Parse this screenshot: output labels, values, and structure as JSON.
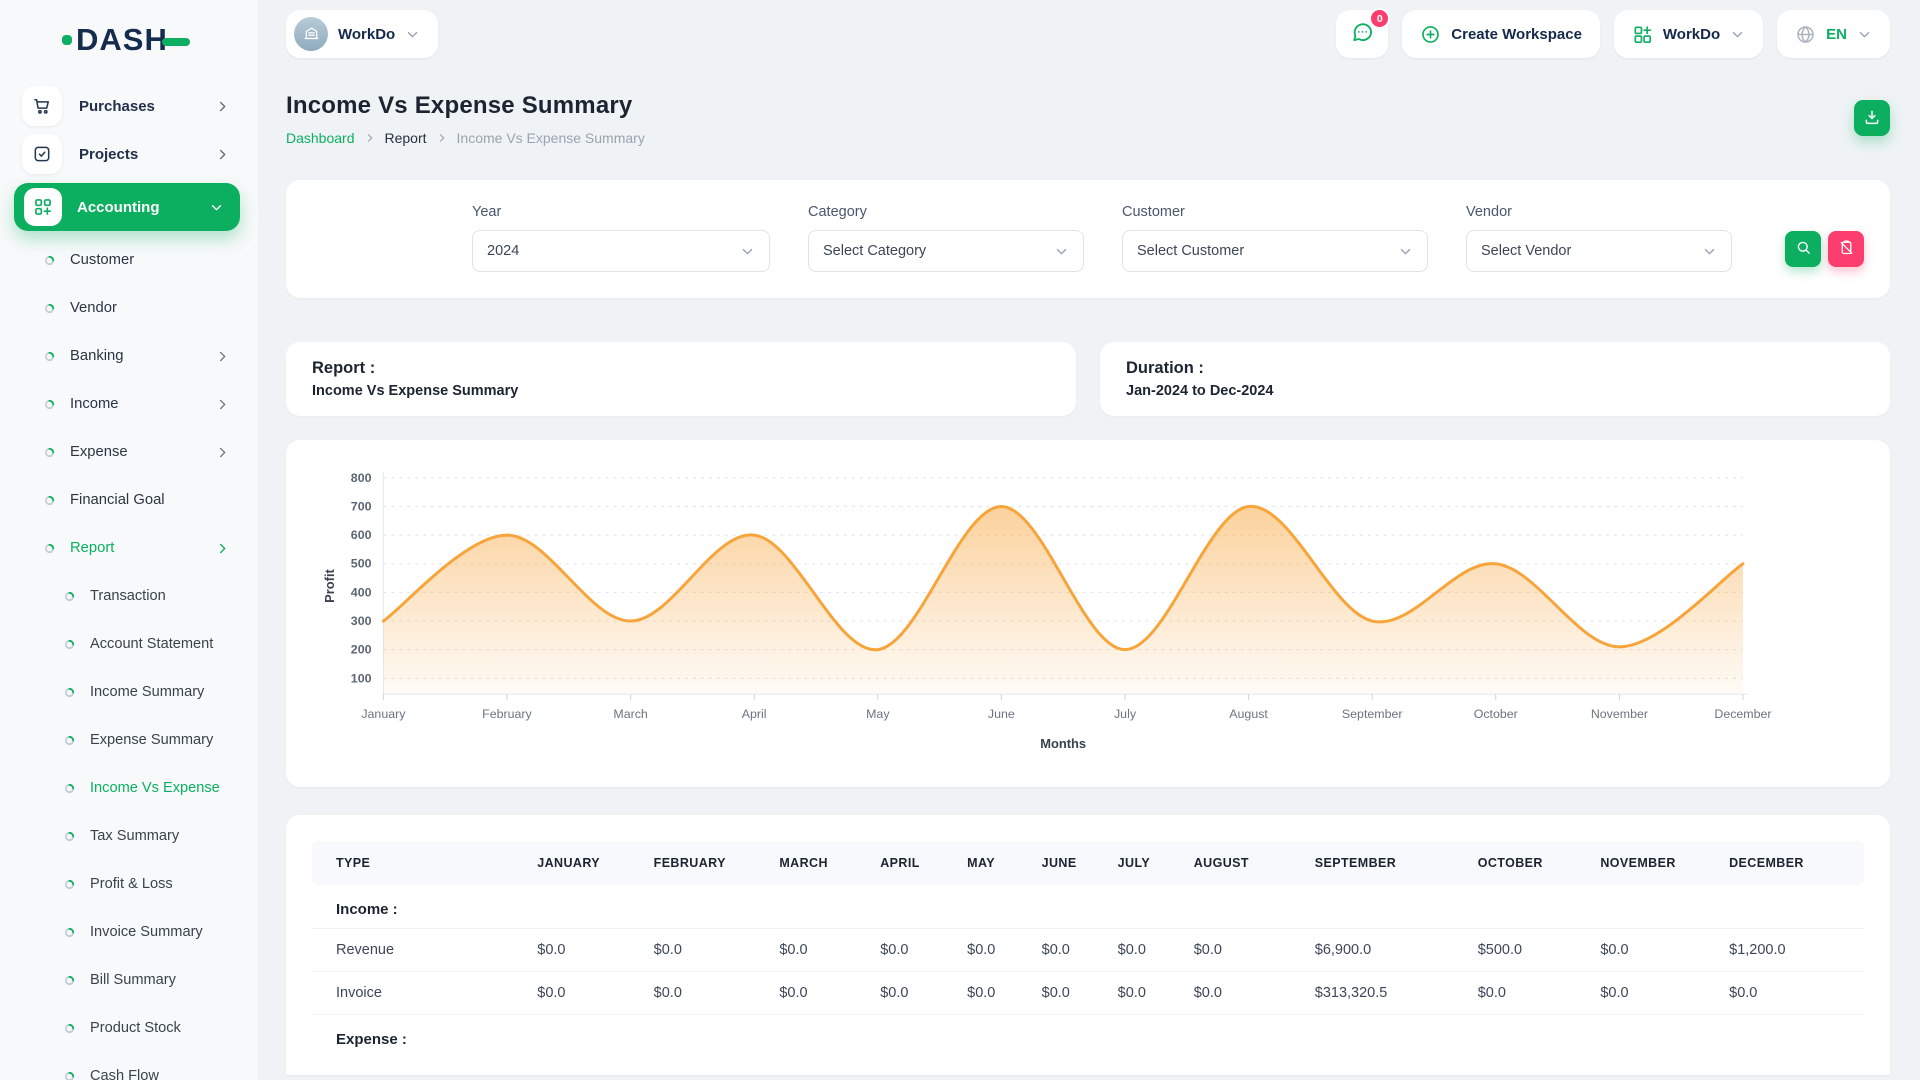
{
  "brand": {
    "name": "DASH"
  },
  "header": {
    "workspace_label": "WorkDo",
    "notification_count": "0",
    "create_workspace_label": "Create Workspace",
    "workdo_menu_label": "WorkDo",
    "language_label": "EN"
  },
  "page": {
    "title": "Income Vs Expense Summary",
    "breadcrumb": [
      "Dashboard",
      "Report",
      "Income Vs Expense Summary"
    ]
  },
  "sidebar": {
    "items": [
      {
        "label": "Purchases",
        "icon": "cart",
        "level": 0,
        "chevron": "right"
      },
      {
        "label": "Projects",
        "icon": "checkbox",
        "level": 0,
        "chevron": "right"
      },
      {
        "label": "Accounting",
        "icon": "accounting",
        "level": 0,
        "chevron": "down",
        "active": true
      },
      {
        "label": "Customer",
        "level": 1
      },
      {
        "label": "Vendor",
        "level": 1
      },
      {
        "label": "Banking",
        "level": 1,
        "chevron": "right"
      },
      {
        "label": "Income",
        "level": 1,
        "chevron": "right"
      },
      {
        "label": "Expense",
        "level": 1,
        "chevron": "right"
      },
      {
        "label": "Financial Goal",
        "level": 1
      },
      {
        "label": "Report",
        "level": 1,
        "chevron": "right",
        "active": true
      },
      {
        "label": "Transaction",
        "level": 2
      },
      {
        "label": "Account Statement",
        "level": 2
      },
      {
        "label": "Income Summary",
        "level": 2
      },
      {
        "label": "Expense Summary",
        "level": 2
      },
      {
        "label": "Income Vs Expense",
        "level": 2,
        "active": true
      },
      {
        "label": "Tax Summary",
        "level": 2
      },
      {
        "label": "Profit & Loss",
        "level": 2
      },
      {
        "label": "Invoice Summary",
        "level": 2
      },
      {
        "label": "Bill Summary",
        "level": 2
      },
      {
        "label": "Product Stock",
        "level": 2
      },
      {
        "label": "Cash Flow",
        "level": 2
      }
    ]
  },
  "filters": {
    "year_label": "Year",
    "year_value": "2024",
    "category_label": "Category",
    "category_value": "Select Category",
    "customer_label": "Customer",
    "customer_value": "Select Customer",
    "vendor_label": "Vendor",
    "vendor_value": "Select Vendor"
  },
  "info_cards": {
    "report_title": "Report :",
    "report_value": "Income Vs Expense Summary",
    "duration_title": "Duration :",
    "duration_value": "Jan-2024 to Dec-2024"
  },
  "chart_data": {
    "type": "area",
    "categories": [
      "January",
      "February",
      "March",
      "April",
      "May",
      "June",
      "July",
      "August",
      "September",
      "October",
      "November",
      "December"
    ],
    "series": [
      {
        "name": "Profit",
        "values": [
          300,
          600,
          300,
          600,
          200,
          700,
          200,
          700,
          300,
          500,
          210,
          500
        ]
      }
    ],
    "title": "",
    "xlabel": "Months",
    "ylabel": "Profit",
    "ylim": [
      100,
      800
    ],
    "y_ticks": [
      100,
      200,
      300,
      400,
      500,
      600,
      700,
      800
    ],
    "grid": "horizontal-dashed",
    "legend": "none",
    "line_color": "#F7A43A"
  },
  "table": {
    "columns": [
      "TYPE",
      "JANUARY",
      "FEBRUARY",
      "MARCH",
      "APRIL",
      "MAY",
      "JUNE",
      "JULY",
      "AUGUST",
      "SEPTEMBER",
      "OCTOBER",
      "NOVEMBER",
      "DECEMBER"
    ],
    "groups": [
      {
        "label": "Income :",
        "rows": [
          {
            "type": "Revenue",
            "values": [
              "$0.0",
              "$0.0",
              "$0.0",
              "$0.0",
              "$0.0",
              "$0.0",
              "$0.0",
              "$0.0",
              "$6,900.0",
              "$500.0",
              "$0.0",
              "$1,200.0"
            ]
          },
          {
            "type": "Invoice",
            "values": [
              "$0.0",
              "$0.0",
              "$0.0",
              "$0.0",
              "$0.0",
              "$0.0",
              "$0.0",
              "$0.0",
              "$313,320.5",
              "$0.0",
              "$0.0",
              "$0.0"
            ]
          }
        ]
      },
      {
        "label": "Expense :",
        "rows": []
      }
    ]
  },
  "colors": {
    "primary_green": "#0CAF60",
    "danger_pink": "#FB3E6E",
    "chart_orange": "#F7A43A",
    "brand_navy": "#152c4e"
  }
}
